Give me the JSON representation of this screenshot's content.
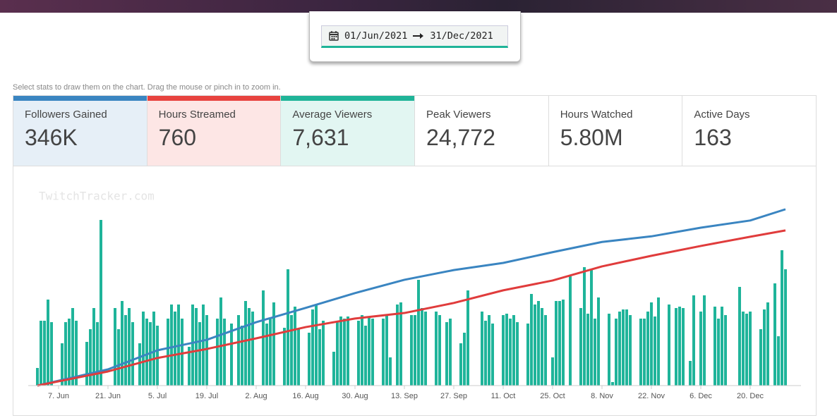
{
  "date_range": {
    "start": "01/Jun/2021",
    "end": "31/Dec/2021"
  },
  "hint": "Select stats to draw them on the chart. Drag the mouse or pinch in to zoom in.",
  "stats": [
    {
      "label": "Followers Gained",
      "value": "346K",
      "color": "#3a85c1",
      "background": "#e6eff7"
    },
    {
      "label": "Hours Streamed",
      "value": "760",
      "color": "#e8433f",
      "background": "#fde6e5"
    },
    {
      "label": "Average Viewers",
      "value": "7,631",
      "color": "#1fb498",
      "background": "#e2f6f2"
    },
    {
      "label": "Peak Viewers",
      "value": "24,772"
    },
    {
      "label": "Hours Watched",
      "value": "5.80M"
    },
    {
      "label": "Active Days",
      "value": "163"
    }
  ],
  "watermark": "TwitchTracker.com",
  "chart_data": {
    "type": "bar",
    "xlim": [
      -2.6,
      216.4
    ],
    "xticks": [
      {
        "value": 6,
        "label": "7. Jun"
      },
      {
        "value": 20,
        "label": "21. Jun"
      },
      {
        "value": 34,
        "label": "5. Jul"
      },
      {
        "value": 48,
        "label": "19. Jul"
      },
      {
        "value": 62,
        "label": "2. Aug"
      },
      {
        "value": 76,
        "label": "16. Aug"
      },
      {
        "value": 90,
        "label": "30. Aug"
      },
      {
        "value": 104,
        "label": "13. Sep"
      },
      {
        "value": 118,
        "label": "27. Sep"
      },
      {
        "value": 132,
        "label": "11. Oct"
      },
      {
        "value": 146,
        "label": "25. Oct"
      },
      {
        "value": 160,
        "label": "8. Nov"
      },
      {
        "value": 174,
        "label": "22. Nov"
      },
      {
        "value": 188,
        "label": "6. Dec"
      },
      {
        "value": 202,
        "label": "20. Dec"
      }
    ],
    "ylim": [
      0,
      29000
    ],
    "y2lim": [
      0,
      400000
    ],
    "y3lim": [
      0,
      1000
    ],
    "series": [
      {
        "type": "bar",
        "color": "#1fb49a",
        "values": [
          2500,
          9200,
          9200,
          12200,
          9000,
          null,
          null,
          6000,
          9000,
          9500,
          11000,
          9200,
          null,
          null,
          6200,
          8000,
          11000,
          9000,
          23500,
          null,
          null,
          null,
          11000,
          8000,
          12000,
          10000,
          11000,
          9000,
          null,
          6000,
          10500,
          9500,
          9000,
          10500,
          8500,
          null,
          null,
          9500,
          11500,
          10500,
          11500,
          9500,
          null,
          5500,
          11500,
          11000,
          9000,
          11500,
          10000,
          null,
          null,
          9500,
          12500,
          9500,
          null,
          8800,
          null,
          10000,
          8500,
          12000,
          11000,
          10500,
          null,
          null,
          13500,
          8800,
          9500,
          11800,
          null,
          null,
          8200,
          16500,
          10000,
          11200,
          8000,
          null,
          null,
          7500,
          10800,
          11500,
          8000,
          9200,
          null,
          null,
          4800,
          9000,
          9800,
          9500,
          9800,
          null,
          null,
          9200,
          10000,
          8500,
          9800,
          9500,
          null,
          null,
          9500,
          10000,
          4000,
          null,
          11500,
          11800,
          null,
          null,
          10000,
          10000,
          15000,
          11000,
          10500,
          null,
          null,
          10500,
          10000,
          null,
          9000,
          9500,
          null,
          null,
          6000,
          7500,
          13500,
          null,
          null,
          null,
          10500,
          9200,
          10000,
          8800,
          null,
          null,
          10000,
          10200,
          9500,
          10000,
          9000,
          null,
          null,
          8800,
          13000,
          11500,
          12000,
          11000,
          10000,
          null,
          4000,
          12000,
          12000,
          12200,
          null,
          15500,
          null,
          null,
          11000,
          16800,
          10200,
          16500,
          9500,
          12500,
          null,
          null,
          10200,
          500,
          9500,
          10500,
          10800,
          10800,
          10000,
          null,
          null,
          9500,
          9500,
          10500,
          11800,
          9800,
          12500,
          null,
          null,
          11500,
          null,
          11000,
          11200,
          11000,
          null,
          3500,
          12800,
          null,
          10500,
          12800,
          null,
          null,
          11200,
          9500,
          11200,
          10000,
          null,
          null,
          null,
          14000,
          10500,
          10200,
          10500,
          null,
          null,
          8000,
          10800,
          11800,
          null,
          14500,
          7000,
          19200,
          16500,
          null
        ]
      },
      {
        "type": "line",
        "axis": "y2",
        "color": "#3a85c1",
        "x": [
          0,
          20,
          34,
          48,
          62,
          76,
          90,
          104,
          118,
          132,
          146,
          160,
          174,
          188,
          202,
          212
        ],
        "values": [
          0,
          31700,
          69000,
          89600,
          124000,
          152000,
          181000,
          207000,
          226000,
          240000,
          261000,
          281000,
          292000,
          309000,
          323000,
          345000
        ]
      },
      {
        "type": "line",
        "axis": "y3",
        "color": "#e03c3c",
        "x": [
          0,
          20,
          34,
          48,
          62,
          76,
          90,
          104,
          118,
          132,
          146,
          160,
          174,
          188,
          202,
          212
        ],
        "values": [
          0,
          69,
          135,
          179,
          231,
          286,
          328,
          355,
          404,
          466,
          514,
          583,
          635,
          683,
          728,
          759
        ]
      }
    ]
  }
}
